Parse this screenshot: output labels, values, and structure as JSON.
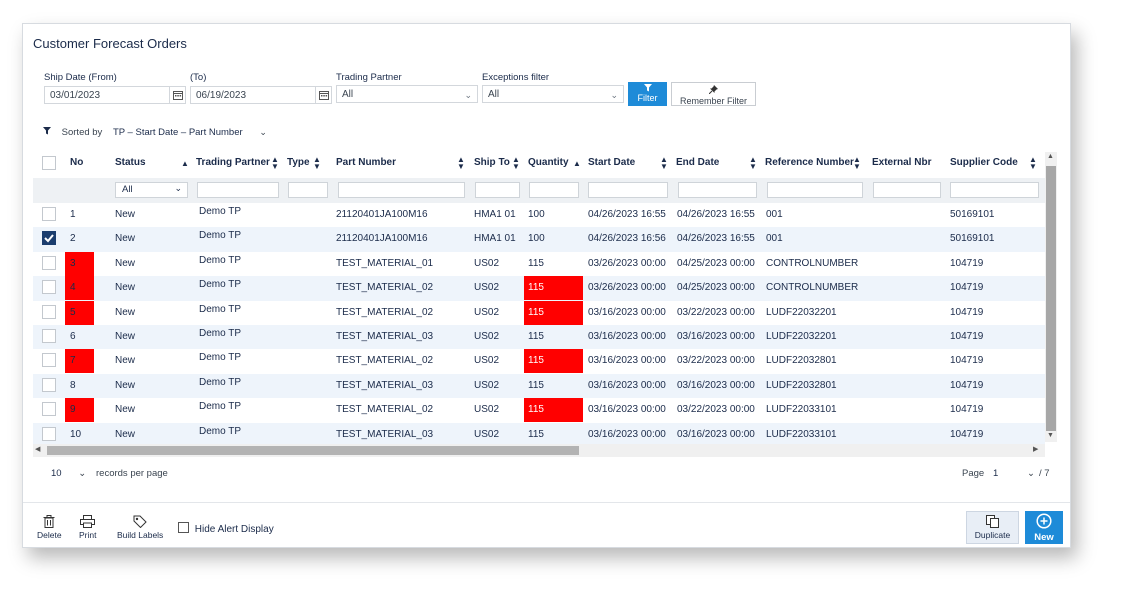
{
  "title": "Customer Forecast Orders",
  "filters": {
    "ship_date_from_label": "Ship Date (From)",
    "ship_date_from": "03/01/2023",
    "to_label": "(To)",
    "ship_date_to": "06/19/2023",
    "trading_partner_label": "Trading Partner",
    "trading_partner_value": "All",
    "exceptions_label": "Exceptions filter",
    "exceptions_value": "All",
    "filter_button": "Filter",
    "remember_button": "Remember Filter"
  },
  "sorted": {
    "label": "Sorted by",
    "value": "TP – Start Date – Part Number"
  },
  "columns": {
    "no": "No",
    "status": "Status",
    "trading_partner": "Trading Partner",
    "type": "Type",
    "part_number": "Part Number",
    "ship_to": "Ship To",
    "quantity": "Quantity",
    "start_date": "Start Date",
    "end_date": "End Date",
    "reference_number": "Reference Number",
    "external_nbr": "External Nbr",
    "supplier_code": "Supplier Code"
  },
  "status_filter_value": "All",
  "rows": [
    {
      "no": "1",
      "status": "New",
      "tp": "Demo TP",
      "type": "",
      "part": "21120401JA100M16",
      "ship_to": "HMA1 01",
      "qty": "100",
      "start": "04/26/2023 16:55",
      "end": "04/26/2023 16:55",
      "ref": "001",
      "ext": "",
      "supplier": "50169101",
      "checked": false,
      "no_alert": false,
      "qty_alert": false
    },
    {
      "no": "2",
      "status": "New",
      "tp": "Demo TP",
      "type": "",
      "part": "21120401JA100M16",
      "ship_to": "HMA1 01",
      "qty": "100",
      "start": "04/26/2023 16:56",
      "end": "04/26/2023 16:55",
      "ref": "001",
      "ext": "",
      "supplier": "50169101",
      "checked": true,
      "no_alert": false,
      "qty_alert": false
    },
    {
      "no": "3",
      "status": "New",
      "tp": "Demo TP",
      "type": "",
      "part": "TEST_MATERIAL_01",
      "ship_to": "US02",
      "qty": "115",
      "start": "03/26/2023 00:00",
      "end": "04/25/2023 00:00",
      "ref": "CONTROLNUMBER",
      "ext": "",
      "supplier": "104719",
      "checked": false,
      "no_alert": true,
      "qty_alert": false
    },
    {
      "no": "4",
      "status": "New",
      "tp": "Demo TP",
      "type": "",
      "part": "TEST_MATERIAL_02",
      "ship_to": "US02",
      "qty": "115",
      "start": "03/26/2023 00:00",
      "end": "04/25/2023 00:00",
      "ref": "CONTROLNUMBER",
      "ext": "",
      "supplier": "104719",
      "checked": false,
      "no_alert": true,
      "qty_alert": true
    },
    {
      "no": "5",
      "status": "New",
      "tp": "Demo TP",
      "type": "",
      "part": "TEST_MATERIAL_02",
      "ship_to": "US02",
      "qty": "115",
      "start": "03/16/2023 00:00",
      "end": "03/22/2023 00:00",
      "ref": "LUDF22032201",
      "ext": "",
      "supplier": "104719",
      "checked": false,
      "no_alert": true,
      "qty_alert": true
    },
    {
      "no": "6",
      "status": "New",
      "tp": "Demo TP",
      "type": "",
      "part": "TEST_MATERIAL_03",
      "ship_to": "US02",
      "qty": "115",
      "start": "03/16/2023 00:00",
      "end": "03/16/2023 00:00",
      "ref": "LUDF22032201",
      "ext": "",
      "supplier": "104719",
      "checked": false,
      "no_alert": false,
      "qty_alert": false
    },
    {
      "no": "7",
      "status": "New",
      "tp": "Demo TP",
      "type": "",
      "part": "TEST_MATERIAL_02",
      "ship_to": "US02",
      "qty": "115",
      "start": "03/16/2023 00:00",
      "end": "03/22/2023 00:00",
      "ref": "LUDF22032801",
      "ext": "",
      "supplier": "104719",
      "checked": false,
      "no_alert": true,
      "qty_alert": true
    },
    {
      "no": "8",
      "status": "New",
      "tp": "Demo TP",
      "type": "",
      "part": "TEST_MATERIAL_03",
      "ship_to": "US02",
      "qty": "115",
      "start": "03/16/2023 00:00",
      "end": "03/16/2023 00:00",
      "ref": "LUDF22032801",
      "ext": "",
      "supplier": "104719",
      "checked": false,
      "no_alert": false,
      "qty_alert": false
    },
    {
      "no": "9",
      "status": "New",
      "tp": "Demo TP",
      "type": "",
      "part": "TEST_MATERIAL_02",
      "ship_to": "US02",
      "qty": "115",
      "start": "03/16/2023 00:00",
      "end": "03/22/2023 00:00",
      "ref": "LUDF22033101",
      "ext": "",
      "supplier": "104719",
      "checked": false,
      "no_alert": true,
      "qty_alert": true
    },
    {
      "no": "10",
      "status": "New",
      "tp": "Demo TP",
      "type": "",
      "part": "TEST_MATERIAL_03",
      "ship_to": "US02",
      "qty": "115",
      "start": "03/16/2023 00:00",
      "end": "03/16/2023 00:00",
      "ref": "LUDF22033101",
      "ext": "",
      "supplier": "104719",
      "checked": false,
      "no_alert": false,
      "qty_alert": false
    }
  ],
  "pager": {
    "per_page_value": "10",
    "per_page_label": "records per page",
    "page_label": "Page",
    "page_value": "1",
    "page_total": "/ 7"
  },
  "toolbar": {
    "delete": "Delete",
    "print": "Print",
    "build_labels": "Build Labels",
    "hide_alert": "Hide Alert Display",
    "duplicate": "Duplicate",
    "new": "New"
  },
  "colors": {
    "accent": "#1e8bd8",
    "alert": "#ff0000",
    "checked": "#1b3d6e"
  }
}
